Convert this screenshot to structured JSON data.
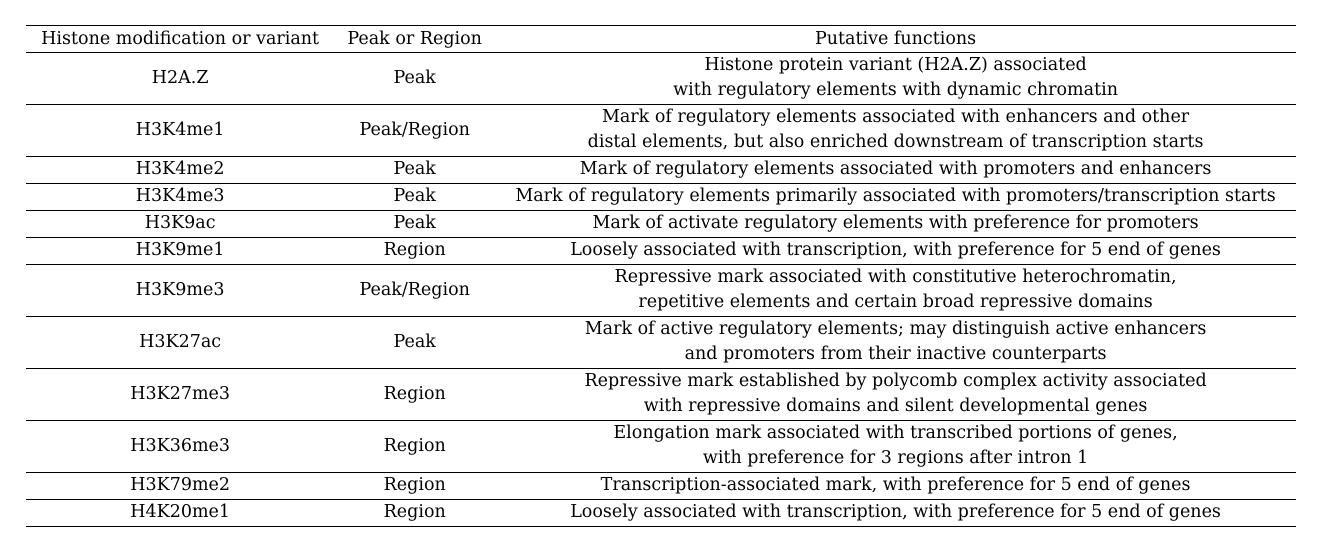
{
  "table": {
    "headers": {
      "modification": "Histone modification or variant",
      "type": "Peak or Region",
      "function": "Putative functions"
    },
    "rows": [
      {
        "modification": "H2A.Z",
        "type": "Peak",
        "function_lines": [
          "Histone protein variant (H2A.Z) associated",
          "with regulatory elements with dynamic chromatin"
        ]
      },
      {
        "modification": "H3K4me1",
        "type": "Peak/Region",
        "function_lines": [
          "Mark of regulatory elements associated with enhancers and other",
          "distal elements, but also enriched downstream of transcription starts"
        ]
      },
      {
        "modification": "H3K4me2",
        "type": "Peak",
        "function_lines": [
          "Mark of regulatory elements associated with promoters and enhancers"
        ]
      },
      {
        "modification": "H3K4me3",
        "type": "Peak",
        "function_lines": [
          "Mark of regulatory elements primarily associated with promoters/transcription starts"
        ]
      },
      {
        "modification": "H3K9ac",
        "type": "Peak",
        "function_lines": [
          "Mark of activate regulatory elements with preference for promoters"
        ]
      },
      {
        "modification": "H3K9me1",
        "type": "Region",
        "function_lines": [
          "Loosely associated with transcription, with preference for 5 end of genes"
        ]
      },
      {
        "modification": "H3K9me3",
        "type": "Peak/Region",
        "function_lines": [
          "Repressive mark associated with constitutive heterochromatin,",
          "repetitive elements and certain broad repressive domains"
        ]
      },
      {
        "modification": "H3K27ac",
        "type": "Peak",
        "function_lines": [
          "Mark of active regulatory elements; may distinguish active enhancers",
          "and promoters from their inactive counterparts"
        ]
      },
      {
        "modification": "H3K27me3",
        "type": "Region",
        "function_lines": [
          "Repressive mark established by polycomb complex activity associated",
          "with repressive domains and silent developmental genes"
        ]
      },
      {
        "modification": "H3K36me3",
        "type": "Region",
        "function_lines": [
          "Elongation mark associated with transcribed portions of genes,",
          "with preference for 3 regions after intron 1"
        ]
      },
      {
        "modification": "H3K79me2",
        "type": "Region",
        "function_lines": [
          "Transcription-associated mark, with preference for 5 end of genes"
        ]
      },
      {
        "modification": "H4K20me1",
        "type": "Region",
        "function_lines": [
          "Loosely associated with transcription, with preference for 5 end of genes"
        ]
      }
    ]
  }
}
